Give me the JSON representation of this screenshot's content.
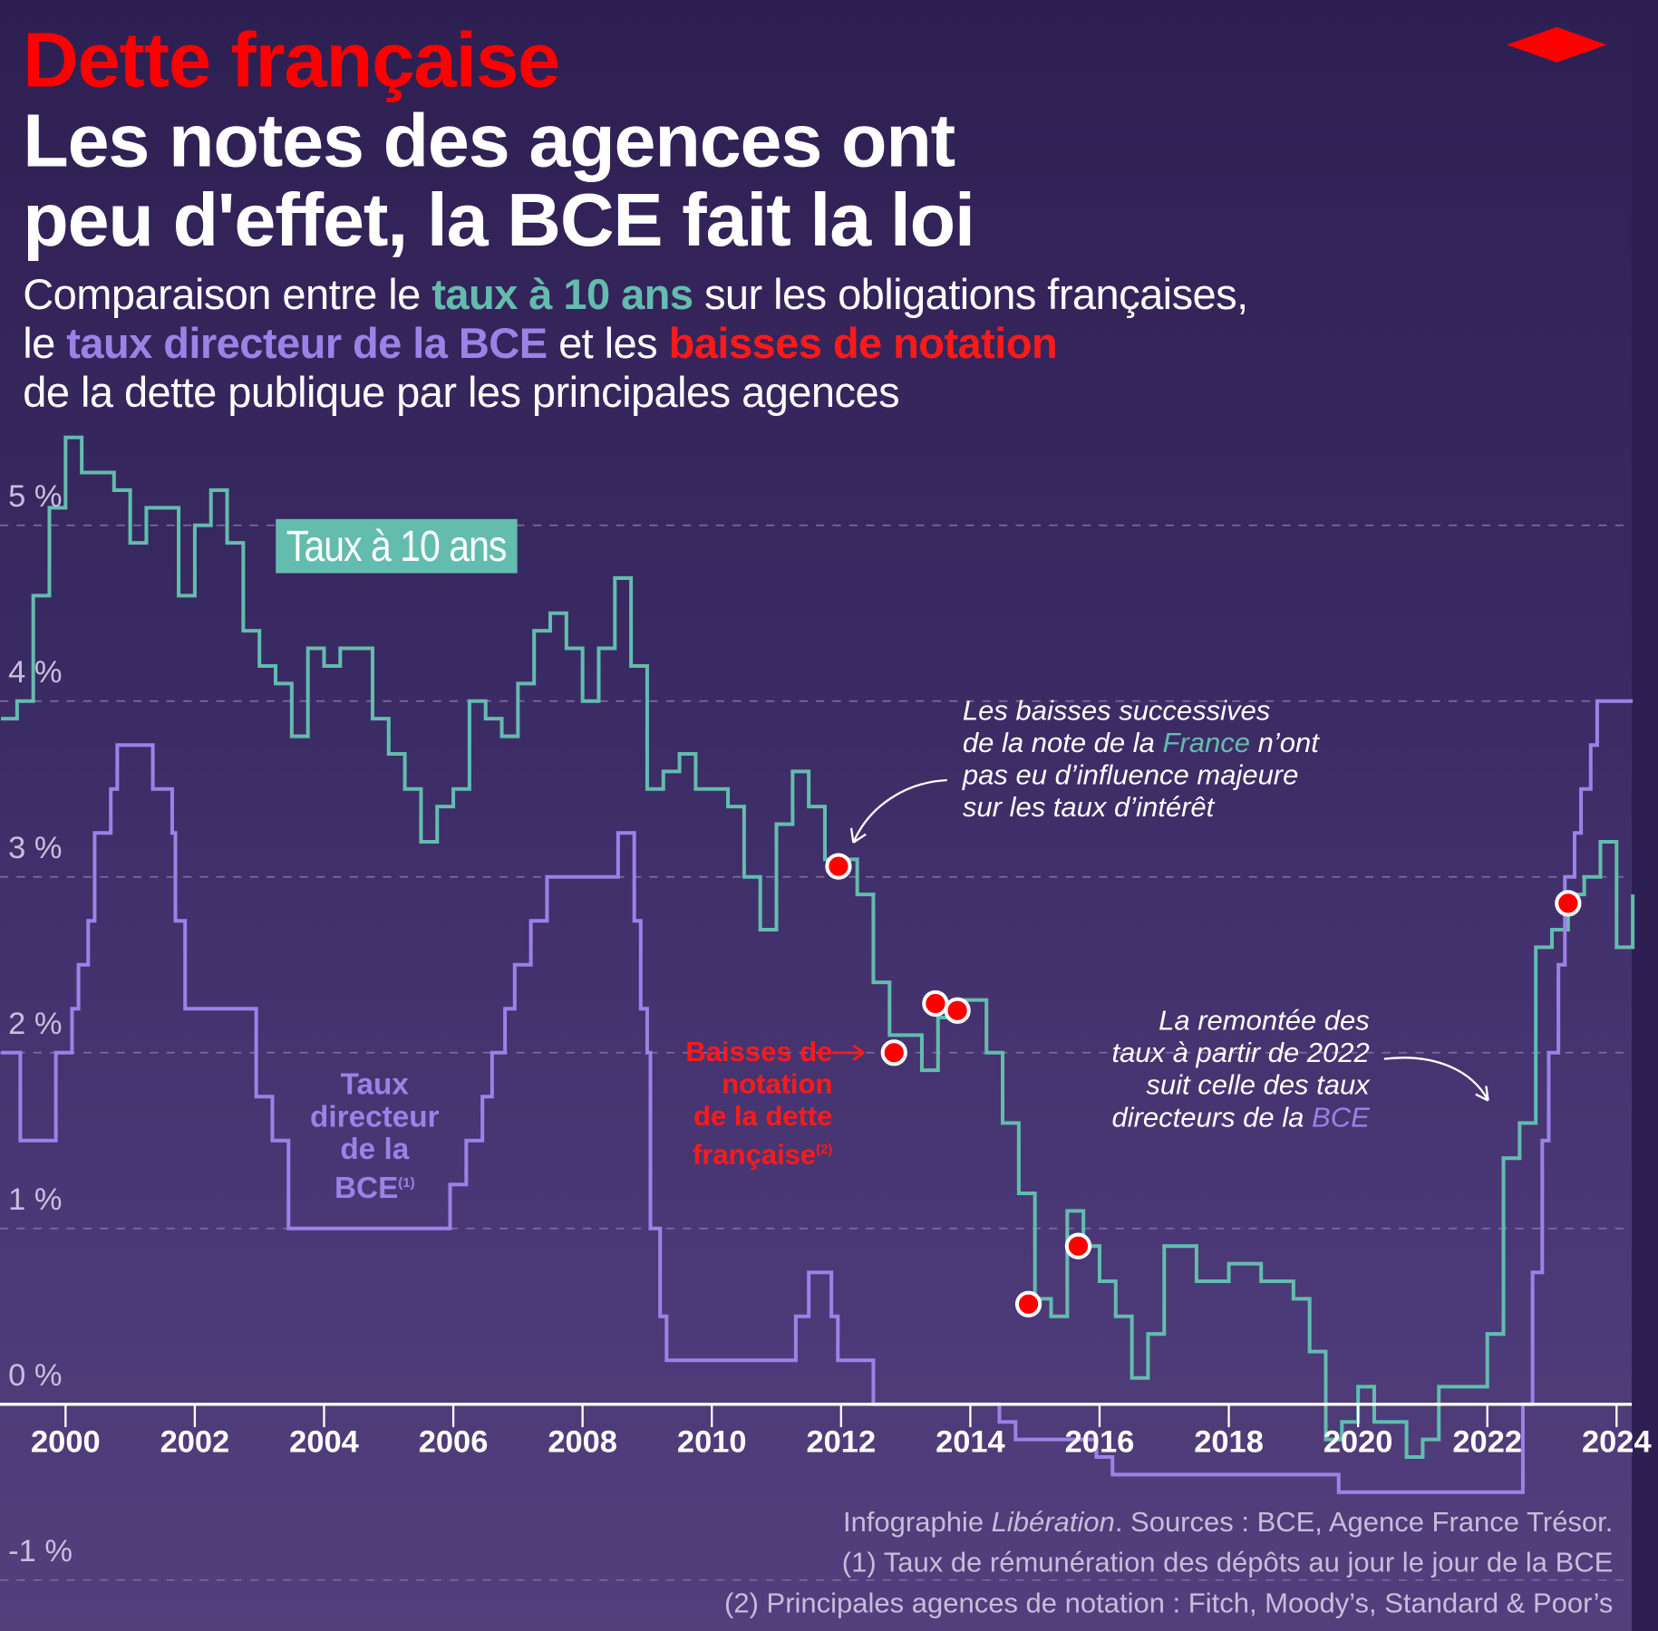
{
  "header": {
    "kicker": "Dette française",
    "headline_line1": "Les notes des agences ont",
    "headline_line2": "peu d'effet, la BCE fait la loi",
    "subtitle": {
      "p1": "Comparaison entre le ",
      "teal": "taux à 10 ans",
      "p2": " sur les obligations françaises,",
      "p3": "le ",
      "purple": "taux directeur de la BCE",
      "p4": " et les ",
      "red": "baisses de notation",
      "p5": "de la dette publique par les principales agences"
    }
  },
  "colors": {
    "teal": "#63bcae",
    "purple": "#9b82e6",
    "red": "#ff0000"
  },
  "logo": "diamond-logo",
  "chart_data": {
    "type": "line",
    "title": "Les notes des agences ont peu d'effet, la BCE fait la loi",
    "xlim": [
      1999.0,
      2024.25
    ],
    "ylim": [
      -1.2,
      5.8
    ],
    "x_ticks": [
      "2000",
      "2002",
      "2004",
      "2006",
      "2008",
      "2010",
      "2012",
      "2014",
      "2016",
      "2018",
      "2020",
      "2022",
      "2024"
    ],
    "y_ticks": [
      {
        "v": 5,
        "label": "5 %"
      },
      {
        "v": 4,
        "label": "4 %"
      },
      {
        "v": 3,
        "label": "3 %"
      },
      {
        "v": 2,
        "label": "2 %"
      },
      {
        "v": 1,
        "label": "1 %"
      },
      {
        "v": 0,
        "label": "0 %"
      },
      {
        "v": -1,
        "label": "-1 %"
      }
    ],
    "grid": true,
    "series": [
      {
        "name": "Taux à 10 ans",
        "color": "#63bcae",
        "step": true,
        "points": [
          [
            1999.0,
            3.9
          ],
          [
            1999.25,
            4.0
          ],
          [
            1999.5,
            4.6
          ],
          [
            1999.75,
            5.1
          ],
          [
            2000.0,
            5.5
          ],
          [
            2000.25,
            5.3
          ],
          [
            2000.5,
            5.3
          ],
          [
            2000.75,
            5.2
          ],
          [
            2001.0,
            4.9
          ],
          [
            2001.25,
            5.1
          ],
          [
            2001.5,
            5.1
          ],
          [
            2001.75,
            4.6
          ],
          [
            2002.0,
            5.0
          ],
          [
            2002.25,
            5.2
          ],
          [
            2002.5,
            4.9
          ],
          [
            2002.75,
            4.4
          ],
          [
            2003.0,
            4.2
          ],
          [
            2003.25,
            4.1
          ],
          [
            2003.5,
            3.8
          ],
          [
            2003.75,
            4.3
          ],
          [
            2004.0,
            4.2
          ],
          [
            2004.25,
            4.3
          ],
          [
            2004.5,
            4.3
          ],
          [
            2004.75,
            3.9
          ],
          [
            2005.0,
            3.7
          ],
          [
            2005.25,
            3.5
          ],
          [
            2005.5,
            3.2
          ],
          [
            2005.75,
            3.4
          ],
          [
            2006.0,
            3.5
          ],
          [
            2006.25,
            4.0
          ],
          [
            2006.5,
            3.9
          ],
          [
            2006.75,
            3.8
          ],
          [
            2007.0,
            4.1
          ],
          [
            2007.25,
            4.4
          ],
          [
            2007.5,
            4.5
          ],
          [
            2007.75,
            4.3
          ],
          [
            2008.0,
            4.0
          ],
          [
            2008.25,
            4.3
          ],
          [
            2008.5,
            4.7
          ],
          [
            2008.75,
            4.2
          ],
          [
            2009.0,
            3.5
          ],
          [
            2009.25,
            3.6
          ],
          [
            2009.5,
            3.7
          ],
          [
            2009.75,
            3.5
          ],
          [
            2010.0,
            3.5
          ],
          [
            2010.25,
            3.4
          ],
          [
            2010.5,
            3.0
          ],
          [
            2010.75,
            2.7
          ],
          [
            2011.0,
            3.3
          ],
          [
            2011.25,
            3.6
          ],
          [
            2011.5,
            3.4
          ],
          [
            2011.75,
            3.1
          ],
          [
            2012.0,
            3.1
          ],
          [
            2012.25,
            2.9
          ],
          [
            2012.5,
            2.4
          ],
          [
            2012.75,
            2.1
          ],
          [
            2013.0,
            2.1
          ],
          [
            2013.25,
            1.9
          ],
          [
            2013.5,
            2.2
          ],
          [
            2013.75,
            2.3
          ],
          [
            2014.0,
            2.3
          ],
          [
            2014.25,
            2.0
          ],
          [
            2014.5,
            1.6
          ],
          [
            2014.75,
            1.2
          ],
          [
            2015.0,
            0.6
          ],
          [
            2015.25,
            0.5
          ],
          [
            2015.5,
            1.1
          ],
          [
            2015.75,
            0.9
          ],
          [
            2016.0,
            0.7
          ],
          [
            2016.25,
            0.5
          ],
          [
            2016.5,
            0.15
          ],
          [
            2016.75,
            0.4
          ],
          [
            2017.0,
            0.9
          ],
          [
            2017.25,
            0.9
          ],
          [
            2017.5,
            0.7
          ],
          [
            2017.75,
            0.7
          ],
          [
            2018.0,
            0.8
          ],
          [
            2018.25,
            0.8
          ],
          [
            2018.5,
            0.7
          ],
          [
            2018.75,
            0.7
          ],
          [
            2019.0,
            0.6
          ],
          [
            2019.25,
            0.3
          ],
          [
            2019.5,
            -0.2
          ],
          [
            2019.75,
            -0.1
          ],
          [
            2020.0,
            0.1
          ],
          [
            2020.25,
            -0.1
          ],
          [
            2020.5,
            -0.1
          ],
          [
            2020.75,
            -0.3
          ],
          [
            2021.0,
            -0.2
          ],
          [
            2021.25,
            0.1
          ],
          [
            2021.5,
            0.1
          ],
          [
            2021.75,
            0.1
          ],
          [
            2022.0,
            0.4
          ],
          [
            2022.25,
            1.4
          ],
          [
            2022.5,
            1.6
          ],
          [
            2022.75,
            2.6
          ],
          [
            2023.0,
            2.7
          ],
          [
            2023.25,
            2.9
          ],
          [
            2023.5,
            3.0
          ],
          [
            2023.75,
            3.2
          ],
          [
            2024.0,
            2.6
          ],
          [
            2024.25,
            2.9
          ]
        ]
      },
      {
        "name": "Taux directeur de la BCE",
        "color": "#9b82e6",
        "step": true,
        "points": [
          [
            1999.0,
            2.0
          ],
          [
            1999.3,
            1.5
          ],
          [
            1999.85,
            2.0
          ],
          [
            2000.1,
            2.25
          ],
          [
            2000.2,
            2.5
          ],
          [
            2000.35,
            2.75
          ],
          [
            2000.45,
            3.25
          ],
          [
            2000.7,
            3.5
          ],
          [
            2000.8,
            3.75
          ],
          [
            2001.35,
            3.5
          ],
          [
            2001.65,
            3.25
          ],
          [
            2001.7,
            2.75
          ],
          [
            2001.85,
            2.25
          ],
          [
            2002.95,
            1.75
          ],
          [
            2003.2,
            1.5
          ],
          [
            2003.45,
            1.0
          ],
          [
            2005.95,
            1.25
          ],
          [
            2006.2,
            1.5
          ],
          [
            2006.45,
            1.75
          ],
          [
            2006.6,
            2.0
          ],
          [
            2006.8,
            2.25
          ],
          [
            2006.95,
            2.5
          ],
          [
            2007.2,
            2.75
          ],
          [
            2007.45,
            3.0
          ],
          [
            2008.55,
            3.25
          ],
          [
            2008.8,
            2.75
          ],
          [
            2008.9,
            2.25
          ],
          [
            2009.0,
            2.0
          ],
          [
            2009.05,
            1.0
          ],
          [
            2009.2,
            0.5
          ],
          [
            2009.3,
            0.25
          ],
          [
            2011.3,
            0.5
          ],
          [
            2011.5,
            0.75
          ],
          [
            2011.85,
            0.5
          ],
          [
            2011.95,
            0.25
          ],
          [
            2012.5,
            0.0
          ],
          [
            2014.45,
            -0.1
          ],
          [
            2014.7,
            -0.2
          ],
          [
            2015.95,
            -0.3
          ],
          [
            2016.2,
            -0.4
          ],
          [
            2019.7,
            -0.5
          ],
          [
            2022.55,
            0.0
          ],
          [
            2022.7,
            0.75
          ],
          [
            2022.85,
            1.5
          ],
          [
            2022.95,
            2.0
          ],
          [
            2023.1,
            2.5
          ],
          [
            2023.2,
            3.0
          ],
          [
            2023.35,
            3.25
          ],
          [
            2023.45,
            3.5
          ],
          [
            2023.6,
            3.75
          ],
          [
            2023.7,
            4.0
          ],
          [
            2024.25,
            4.0
          ]
        ]
      }
    ],
    "downgrades": [
      [
        2011.96,
        3.06
      ],
      [
        2012.82,
        2.0
      ],
      [
        2013.46,
        2.28
      ],
      [
        2013.8,
        2.24
      ],
      [
        2014.9,
        0.57
      ],
      [
        2015.67,
        0.9
      ],
      [
        2023.25,
        2.85
      ]
    ],
    "labels": {
      "teal_box": "Taux à 10 ans",
      "bce_l1": "Taux",
      "bce_l2": "directeur",
      "bce_l3": "de la",
      "bce_l4": "BCE",
      "bce_note": "(1)",
      "down_l1": "Baisses de",
      "down_l2": "notation",
      "down_l3": "de la dette",
      "down_l4": "française",
      "down_note": "(2)"
    },
    "annotations": {
      "note1_l1": "Les baisses successives",
      "note1_l2a": "de la note de la ",
      "note1_l2b": "France",
      "note1_l2c": " n’ont",
      "note1_l3": "pas eu d’influence majeure",
      "note1_l4": "sur les taux d’intérêt",
      "note2_l1": "La remontée des",
      "note2_l2": "taux à partir de 2022",
      "note2_l3": "suit celle des taux",
      "note2_l4a": "directeurs de la ",
      "note2_l4b": "BCE"
    }
  },
  "footer": {
    "source_a": "Infographie ",
    "source_b": "Libération",
    "source_c": ". Sources : BCE, Agence France Trésor.",
    "note1": "(1) Taux de rémunération des dépôts au jour le jour de la BCE",
    "note2": "(2) Principales agences de notation : Fitch, Moody’s, Standard & Poor’s"
  }
}
